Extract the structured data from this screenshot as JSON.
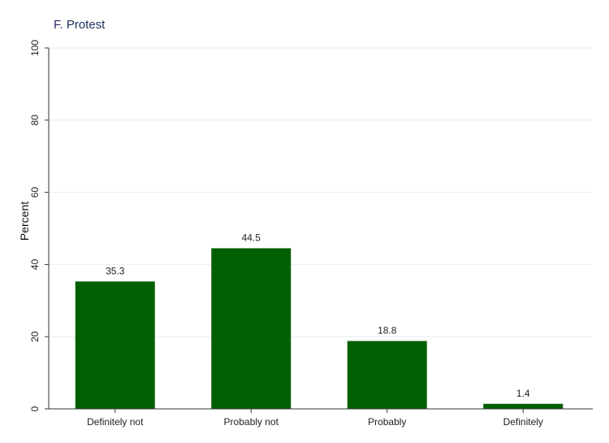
{
  "chart_data": {
    "type": "bar",
    "title": "F. Protest",
    "xlabel": "",
    "ylabel": "Percent",
    "categories": [
      "Definitely not",
      "Probably not",
      "Probably",
      "Definitely"
    ],
    "values": [
      35.3,
      44.5,
      18.8,
      1.4
    ],
    "value_labels": [
      "35.3",
      "44.5",
      "18.8",
      "1.4"
    ],
    "ylim": [
      0,
      100
    ],
    "yticks": [
      0,
      20,
      40,
      60,
      80,
      100
    ],
    "grid": true,
    "bar_color": "#005f00",
    "grid_color": "#e8eef2"
  }
}
